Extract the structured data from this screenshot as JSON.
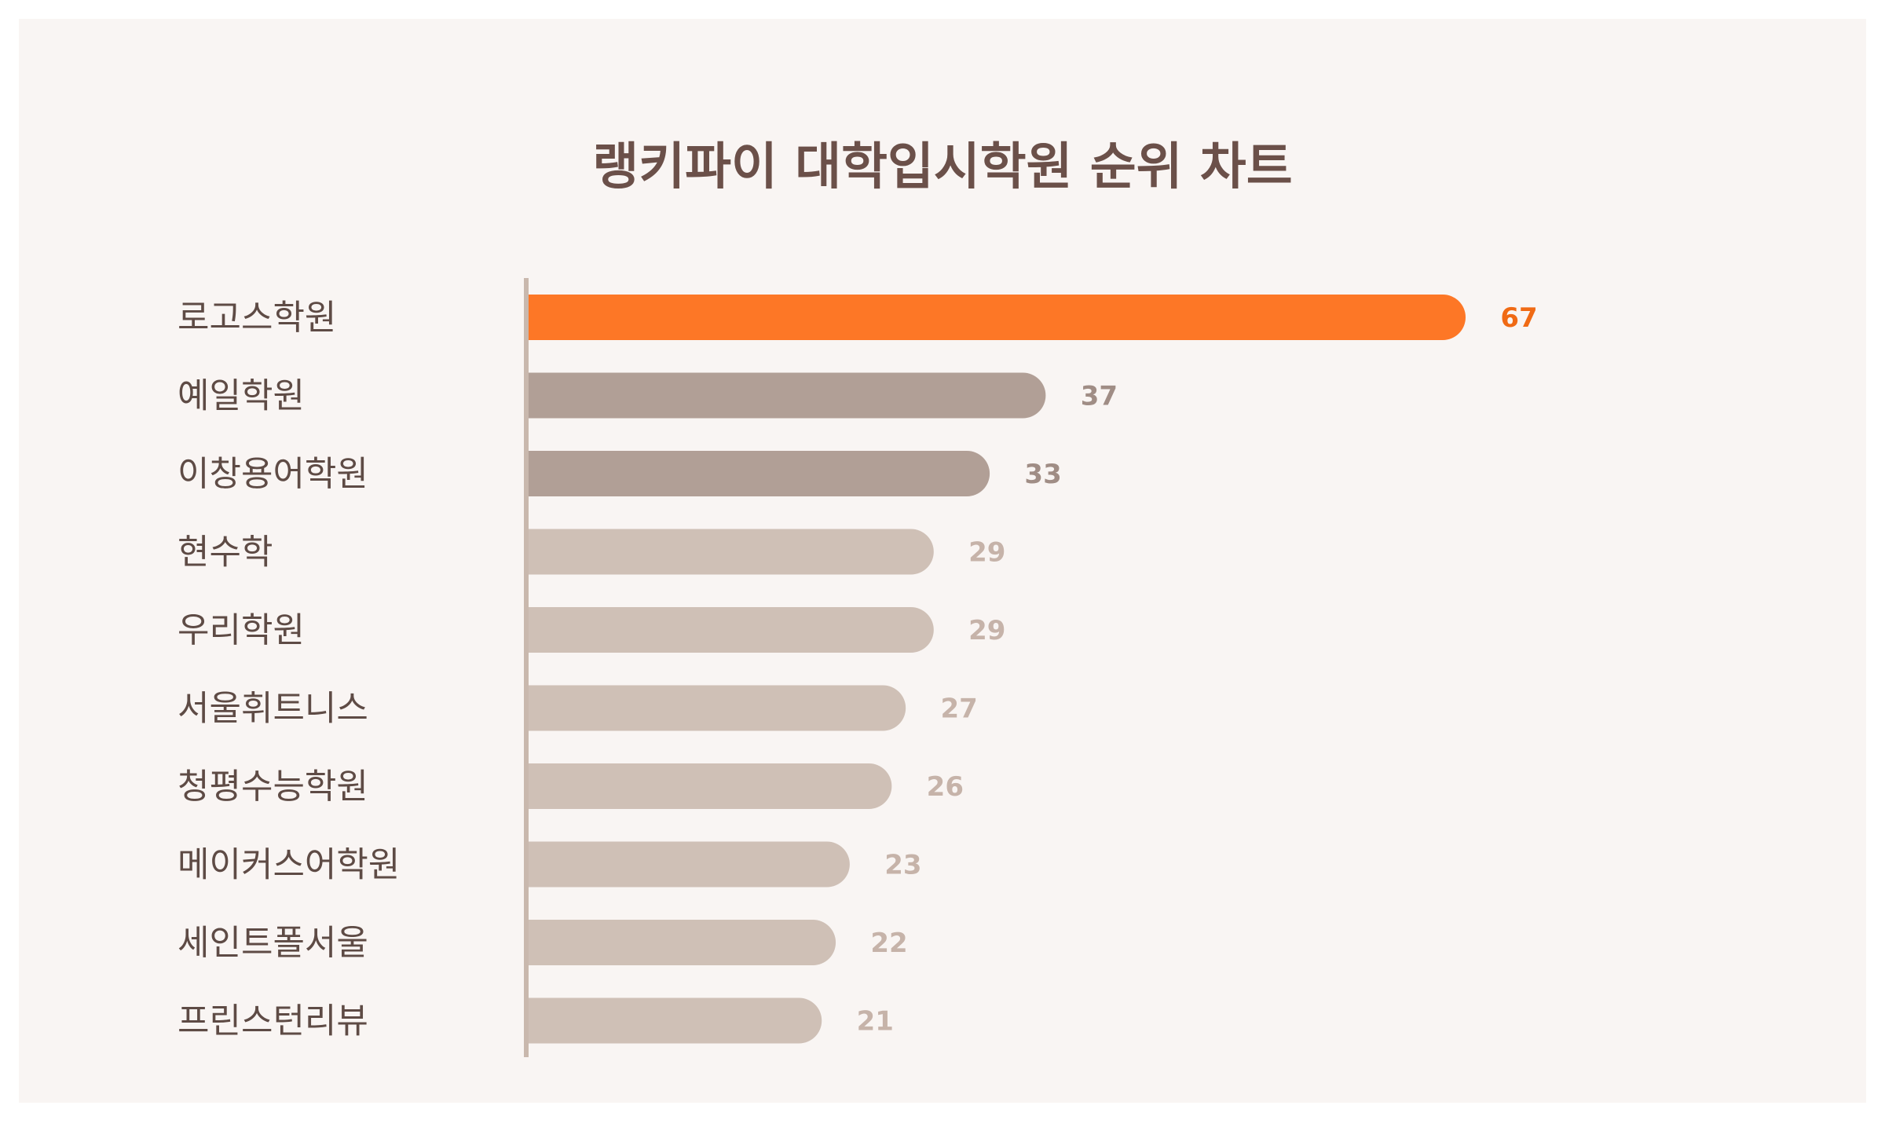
{
  "title": "랭키파이 대학입시학원 순위 차트",
  "colors": {
    "background": "#f9f5f3",
    "title": "#6b5049",
    "label": "#5e4b45",
    "axis": "#c9b8ad",
    "highlight_bar": "#fd7726",
    "highlight_value": "#f06a14",
    "second_bar": "#b19f96",
    "second_value": "#a08d85",
    "rest_bar": "#cfc0b6",
    "rest_value": "#c6b3a9"
  },
  "chart_data": {
    "type": "bar",
    "orientation": "horizontal",
    "title": "랭키파이 대학입시학원 순위 차트",
    "categories": [
      "로고스학원",
      "예일학원",
      "이창용어학원",
      "현수학",
      "우리학원",
      "서울휘트니스",
      "청평수능학원",
      "메이커스어학원",
      "세인트폴서울",
      "프린스턴리뷰"
    ],
    "values": [
      67,
      37,
      33,
      29,
      29,
      27,
      26,
      23,
      22,
      21
    ],
    "value_labels": [
      "67",
      "37",
      "33",
      "29",
      "29",
      "27",
      "26",
      "23",
      "22",
      "21"
    ],
    "xlim": [
      0,
      67
    ],
    "grid": false,
    "legend": "none"
  }
}
